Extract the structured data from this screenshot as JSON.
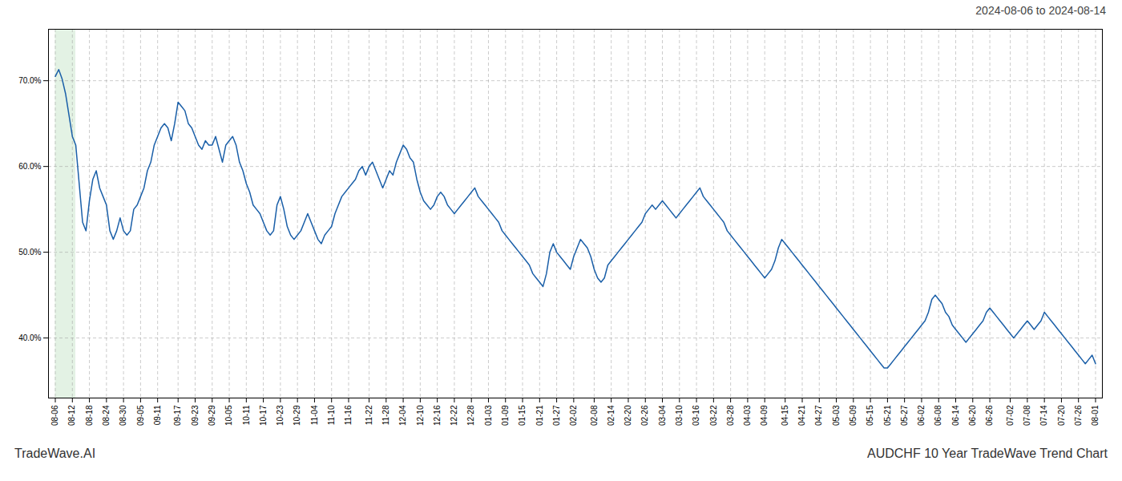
{
  "chart_data": {
    "type": "line",
    "title": "AUDCHF 10 Year TradeWave Trend Chart",
    "subtitle": "2024-08-06 to 2024-08-14",
    "caption": "TradeWave.AI",
    "color": "#1a5fa8",
    "grid": true,
    "highlight": {
      "range": [
        0,
        6
      ],
      "color": "#c8e6c9"
    },
    "xlim": [
      -2,
      307
    ],
    "xticks": [
      {
        "value": 0,
        "label": "08-06"
      },
      {
        "value": 5,
        "label": "08-12"
      },
      {
        "value": 10,
        "label": "08-18"
      },
      {
        "value": 15,
        "label": "08-24"
      },
      {
        "value": 20,
        "label": "08-30"
      },
      {
        "value": 25,
        "label": "09-05"
      },
      {
        "value": 30,
        "label": "09-11"
      },
      {
        "value": 36,
        "label": "09-17"
      },
      {
        "value": 41,
        "label": "09-23"
      },
      {
        "value": 46,
        "label": "09-29"
      },
      {
        "value": 51,
        "label": "10-05"
      },
      {
        "value": 56,
        "label": "10-11"
      },
      {
        "value": 61,
        "label": "10-17"
      },
      {
        "value": 66,
        "label": "10-23"
      },
      {
        "value": 71,
        "label": "10-29"
      },
      {
        "value": 76,
        "label": "11-04"
      },
      {
        "value": 81,
        "label": "11-10"
      },
      {
        "value": 86,
        "label": "11-16"
      },
      {
        "value": 92,
        "label": "11-22"
      },
      {
        "value": 97,
        "label": "11-28"
      },
      {
        "value": 102,
        "label": "12-04"
      },
      {
        "value": 107,
        "label": "12-10"
      },
      {
        "value": 112,
        "label": "12-16"
      },
      {
        "value": 117,
        "label": "12-22"
      },
      {
        "value": 122,
        "label": "12-28"
      },
      {
        "value": 127,
        "label": "01-03"
      },
      {
        "value": 132,
        "label": "01-09"
      },
      {
        "value": 137,
        "label": "01-15"
      },
      {
        "value": 142,
        "label": "01-21"
      },
      {
        "value": 147,
        "label": "01-27"
      },
      {
        "value": 152,
        "label": "02-02"
      },
      {
        "value": 158,
        "label": "02-08"
      },
      {
        "value": 163,
        "label": "02-14"
      },
      {
        "value": 168,
        "label": "02-20"
      },
      {
        "value": 173,
        "label": "02-26"
      },
      {
        "value": 178,
        "label": "03-04"
      },
      {
        "value": 183,
        "label": "03-10"
      },
      {
        "value": 188,
        "label": "03-16"
      },
      {
        "value": 193,
        "label": "03-22"
      },
      {
        "value": 198,
        "label": "03-28"
      },
      {
        "value": 203,
        "label": "04-03"
      },
      {
        "value": 208,
        "label": "04-09"
      },
      {
        "value": 214,
        "label": "04-15"
      },
      {
        "value": 219,
        "label": "04-21"
      },
      {
        "value": 224,
        "label": "04-27"
      },
      {
        "value": 229,
        "label": "05-03"
      },
      {
        "value": 234,
        "label": "05-09"
      },
      {
        "value": 239,
        "label": "05-15"
      },
      {
        "value": 244,
        "label": "05-21"
      },
      {
        "value": 249,
        "label": "05-27"
      },
      {
        "value": 254,
        "label": "06-02"
      },
      {
        "value": 259,
        "label": "06-08"
      },
      {
        "value": 264,
        "label": "06-14"
      },
      {
        "value": 269,
        "label": "06-20"
      },
      {
        "value": 274,
        "label": "06-26"
      },
      {
        "value": 280,
        "label": "07-02"
      },
      {
        "value": 285,
        "label": "07-08"
      },
      {
        "value": 290,
        "label": "07-14"
      },
      {
        "value": 295,
        "label": "07-20"
      },
      {
        "value": 300,
        "label": "07-26"
      },
      {
        "value": 305,
        "label": "08-01"
      }
    ],
    "ylim": [
      33,
      76
    ],
    "yticks": [
      {
        "value": 40,
        "label": "40.0%"
      },
      {
        "value": 50,
        "label": "50.0%"
      },
      {
        "value": 60,
        "label": "60.0%"
      },
      {
        "value": 70,
        "label": "70.0%"
      }
    ],
    "values": [
      70.5,
      71.3,
      70.2,
      68.5,
      66.0,
      63.5,
      62.5,
      58.0,
      53.5,
      52.5,
      56.0,
      58.5,
      59.5,
      57.5,
      56.5,
      55.5,
      52.5,
      51.5,
      52.5,
      54.0,
      52.5,
      52.0,
      52.5,
      55.0,
      55.5,
      56.5,
      57.5,
      59.5,
      60.5,
      62.5,
      63.5,
      64.5,
      65.0,
      64.5,
      63.0,
      65.0,
      67.5,
      67.0,
      66.5,
      65.0,
      64.5,
      63.5,
      62.5,
      62.0,
      63.0,
      62.5,
      62.5,
      63.5,
      62.0,
      60.5,
      62.5,
      63.0,
      63.5,
      62.5,
      60.5,
      59.5,
      58.0,
      57.0,
      55.5,
      55.0,
      54.5,
      53.5,
      52.5,
      52.0,
      52.5,
      55.5,
      56.5,
      55.0,
      53.0,
      52.0,
      51.5,
      52.0,
      52.5,
      53.5,
      54.5,
      53.5,
      52.5,
      51.5,
      51.0,
      52.0,
      52.5,
      53.0,
      54.5,
      55.5,
      56.5,
      57.0,
      57.5,
      58.0,
      58.5,
      59.5,
      60.0,
      59.0,
      60.0,
      60.5,
      59.5,
      58.5,
      57.5,
      58.5,
      59.5,
      59.0,
      60.5,
      61.5,
      62.5,
      62.0,
      61.0,
      60.5,
      58.5,
      57.0,
      56.0,
      55.5,
      55.0,
      55.5,
      56.5,
      57.0,
      56.5,
      55.5,
      55.0,
      54.5,
      55.0,
      55.5,
      56.0,
      56.5,
      57.0,
      57.5,
      56.5,
      56.0,
      55.5,
      55.0,
      54.5,
      54.0,
      53.5,
      52.5,
      52.0,
      51.5,
      51.0,
      50.5,
      50.0,
      49.5,
      49.0,
      48.5,
      47.5,
      47.0,
      46.5,
      46.0,
      47.5,
      50.0,
      51.0,
      50.0,
      49.5,
      49.0,
      48.5,
      48.0,
      49.5,
      50.5,
      51.5,
      51.0,
      50.5,
      49.5,
      48.0,
      47.0,
      46.5,
      47.0,
      48.5,
      49.0,
      49.5,
      50.0,
      50.5,
      51.0,
      51.5,
      52.0,
      52.5,
      53.0,
      53.5,
      54.5,
      55.0,
      55.5,
      55.0,
      55.5,
      56.0,
      55.5,
      55.0,
      54.5,
      54.0,
      54.5,
      55.0,
      55.5,
      56.0,
      56.5,
      57.0,
      57.5,
      56.5,
      56.0,
      55.5,
      55.0,
      54.5,
      54.0,
      53.5,
      52.5,
      52.0,
      51.5,
      51.0,
      50.5,
      50.0,
      49.5,
      49.0,
      48.5,
      48.0,
      47.5,
      47.0,
      47.5,
      48.0,
      49.0,
      50.5,
      51.5,
      51.0,
      50.5,
      50.0,
      49.5,
      49.0,
      48.5,
      48.0,
      47.5,
      47.0,
      46.5,
      46.0,
      45.5,
      45.0,
      44.5,
      44.0,
      43.5,
      43.0,
      42.5,
      42.0,
      41.5,
      41.0,
      40.5,
      40.0,
      39.5,
      39.0,
      38.5,
      38.0,
      37.5,
      37.0,
      36.5,
      36.5,
      37.0,
      37.5,
      38.0,
      38.5,
      39.0,
      39.5,
      40.0,
      40.5,
      41.0,
      41.5,
      42.0,
      43.0,
      44.5,
      45.0,
      44.5,
      44.0,
      43.0,
      42.5,
      41.5,
      41.0,
      40.5,
      40.0,
      39.5,
      40.0,
      40.5,
      41.0,
      41.5,
      42.0,
      43.0,
      43.5,
      43.0,
      42.5,
      42.0,
      41.5,
      41.0,
      40.5,
      40.0,
      40.5,
      41.0,
      41.5,
      42.0,
      41.5,
      41.0,
      41.5,
      42.0,
      43.0,
      42.5,
      42.0,
      41.5,
      41.0,
      40.5,
      40.0,
      39.5,
      39.0,
      38.5,
      38.0,
      37.5,
      37.0,
      37.5,
      38.0,
      37.0
    ]
  }
}
